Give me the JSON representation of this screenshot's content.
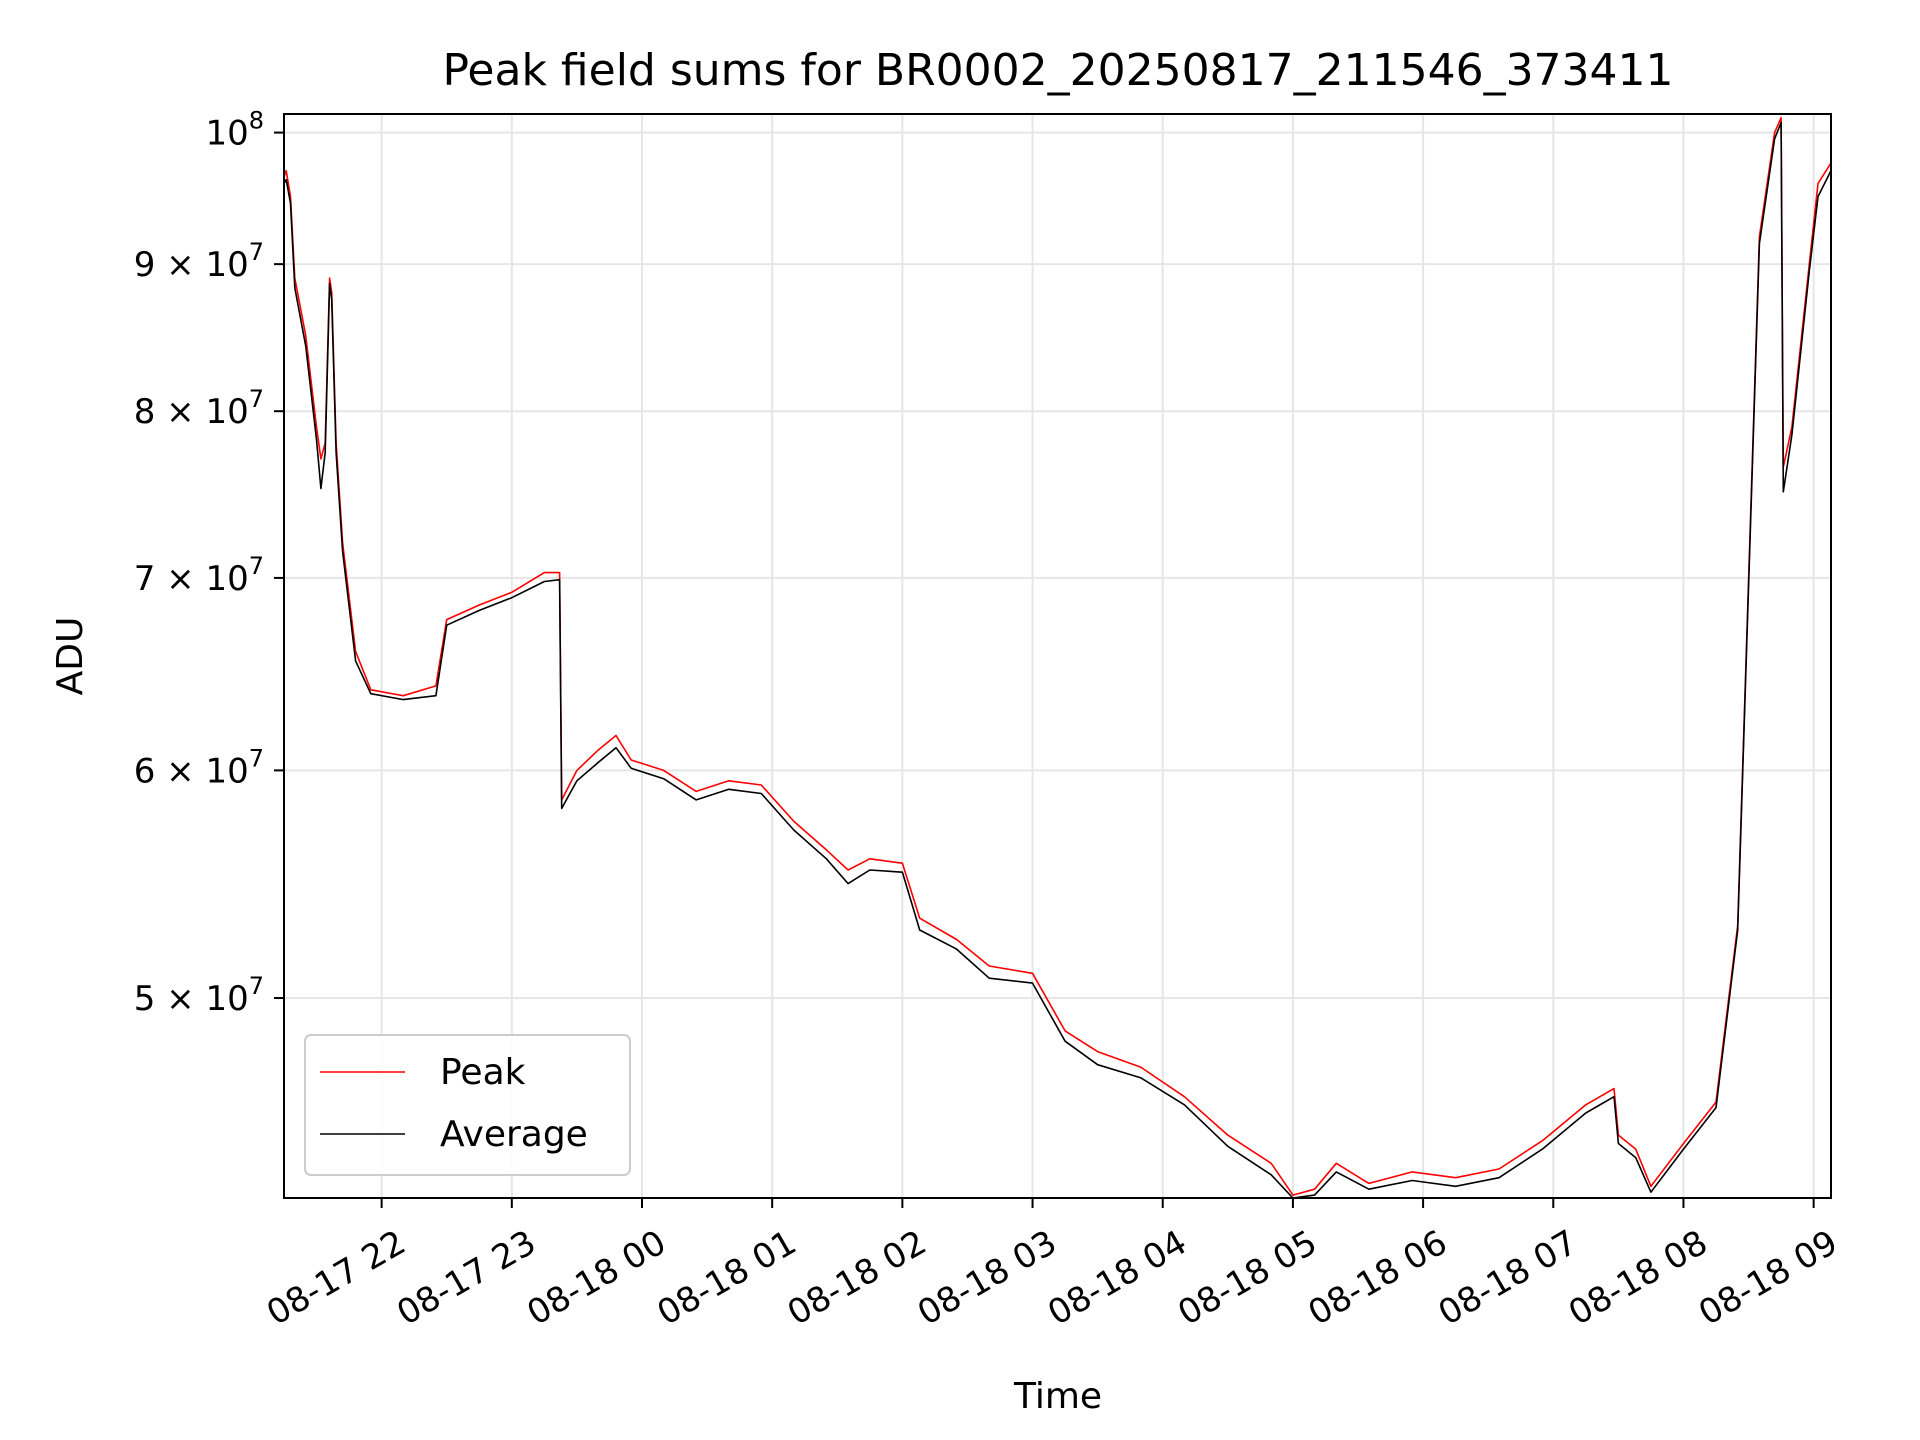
{
  "chart_data": {
    "type": "line",
    "title": "Peak field sums for BR0002_20250817_211546_373411",
    "xlabel": "Time",
    "ylabel": "ADU",
    "yscale": "log",
    "grid": true,
    "legend_position": "lower-left",
    "xlim": [
      "2025-08-17 21:15",
      "2025-08-18 09:08"
    ],
    "ylim": [
      42600000,
      101500000
    ],
    "x_ticks": [
      {
        "at": "2025-08-17 22:00",
        "label": "08-17 22"
      },
      {
        "at": "2025-08-17 23:00",
        "label": "08-17 23"
      },
      {
        "at": "2025-08-18 00:00",
        "label": "08-18 00"
      },
      {
        "at": "2025-08-18 01:00",
        "label": "08-18 01"
      },
      {
        "at": "2025-08-18 02:00",
        "label": "08-18 02"
      },
      {
        "at": "2025-08-18 03:00",
        "label": "08-18 03"
      },
      {
        "at": "2025-08-18 04:00",
        "label": "08-18 04"
      },
      {
        "at": "2025-08-18 05:00",
        "label": "08-18 05"
      },
      {
        "at": "2025-08-18 06:00",
        "label": "08-18 06"
      },
      {
        "at": "2025-08-18 07:00",
        "label": "08-18 07"
      },
      {
        "at": "2025-08-18 08:00",
        "label": "08-18 08"
      },
      {
        "at": "2025-08-18 09:00",
        "label": "08-18 09"
      }
    ],
    "y_ticks": [
      {
        "value": 50000000,
        "base": "5 × 10",
        "exp": "7"
      },
      {
        "value": 60000000,
        "base": "6 × 10",
        "exp": "7"
      },
      {
        "value": 70000000,
        "base": "7 × 10",
        "exp": "7"
      },
      {
        "value": 80000000,
        "base": "8 × 10",
        "exp": "7"
      },
      {
        "value": 90000000,
        "base": "9 × 10",
        "exp": "7"
      },
      {
        "value": 100000000,
        "base": "10",
        "exp": "8"
      }
    ],
    "series": [
      {
        "name": "Peak",
        "color": "#ff0000",
        "points": [
          [
            "2025-08-17 21:15",
            96500000
          ],
          [
            "2025-08-17 21:16",
            97000000
          ],
          [
            "2025-08-17 21:18",
            95000000
          ],
          [
            "2025-08-17 21:20",
            89000000
          ],
          [
            "2025-08-17 21:25",
            85000000
          ],
          [
            "2025-08-17 21:30",
            79000000
          ],
          [
            "2025-08-17 21:32",
            77000000
          ],
          [
            "2025-08-17 21:34",
            78000000
          ],
          [
            "2025-08-17 21:36",
            89000000
          ],
          [
            "2025-08-17 21:37",
            88000000
          ],
          [
            "2025-08-17 21:39",
            78000000
          ],
          [
            "2025-08-17 21:42",
            72000000
          ],
          [
            "2025-08-17 21:48",
            66000000
          ],
          [
            "2025-08-17 21:55",
            64000000
          ],
          [
            "2025-08-17 22:10",
            63700000
          ],
          [
            "2025-08-17 22:25",
            64200000
          ],
          [
            "2025-08-17 22:30",
            67700000
          ],
          [
            "2025-08-17 22:45",
            68500000
          ],
          [
            "2025-08-17 23:00",
            69200000
          ],
          [
            "2025-08-17 23:15",
            70300000
          ],
          [
            "2025-08-17 23:22",
            70300000
          ],
          [
            "2025-08-17 23:23",
            58600000
          ],
          [
            "2025-08-17 23:30",
            60000000
          ],
          [
            "2025-08-17 23:40",
            61000000
          ],
          [
            "2025-08-17 23:48",
            61700000
          ],
          [
            "2025-08-17 23:55",
            60500000
          ],
          [
            "2025-08-18 00:10",
            60000000
          ],
          [
            "2025-08-18 00:25",
            59000000
          ],
          [
            "2025-08-18 00:40",
            59500000
          ],
          [
            "2025-08-18 00:55",
            59300000
          ],
          [
            "2025-08-18 01:10",
            57600000
          ],
          [
            "2025-08-18 01:25",
            56300000
          ],
          [
            "2025-08-18 01:35",
            55400000
          ],
          [
            "2025-08-18 01:45",
            55900000
          ],
          [
            "2025-08-18 02:00",
            55700000
          ],
          [
            "2025-08-18 02:08",
            53300000
          ],
          [
            "2025-08-18 02:25",
            52400000
          ],
          [
            "2025-08-18 02:40",
            51300000
          ],
          [
            "2025-08-18 03:00",
            51000000
          ],
          [
            "2025-08-18 03:15",
            48700000
          ],
          [
            "2025-08-18 03:30",
            47900000
          ],
          [
            "2025-08-18 03:50",
            47300000
          ],
          [
            "2025-08-18 04:10",
            46200000
          ],
          [
            "2025-08-18 04:30",
            44800000
          ],
          [
            "2025-08-18 04:50",
            43800000
          ],
          [
            "2025-08-18 05:00",
            42700000
          ],
          [
            "2025-08-18 05:10",
            42900000
          ],
          [
            "2025-08-18 05:20",
            43800000
          ],
          [
            "2025-08-18 05:35",
            43100000
          ],
          [
            "2025-08-18 05:55",
            43500000
          ],
          [
            "2025-08-18 06:15",
            43300000
          ],
          [
            "2025-08-18 06:35",
            43600000
          ],
          [
            "2025-08-18 06:55",
            44600000
          ],
          [
            "2025-08-18 07:15",
            45900000
          ],
          [
            "2025-08-18 07:28",
            46500000
          ],
          [
            "2025-08-18 07:30",
            44800000
          ],
          [
            "2025-08-18 07:38",
            44300000
          ],
          [
            "2025-08-18 07:45",
            43000000
          ],
          [
            "2025-08-18 08:00",
            44500000
          ],
          [
            "2025-08-18 08:15",
            46000000
          ],
          [
            "2025-08-18 08:25",
            53000000
          ],
          [
            "2025-08-18 08:35",
            92000000
          ],
          [
            "2025-08-18 08:42",
            100000000
          ],
          [
            "2025-08-18 08:45",
            101200000
          ],
          [
            "2025-08-18 08:46",
            76500000
          ],
          [
            "2025-08-18 08:50",
            79000000
          ],
          [
            "2025-08-18 08:58",
            90000000
          ],
          [
            "2025-08-18 09:02",
            96000000
          ],
          [
            "2025-08-18 09:08",
            97600000
          ]
        ]
      },
      {
        "name": "Average",
        "color": "#000000",
        "points": [
          [
            "2025-08-17 21:15",
            96000000
          ],
          [
            "2025-08-17 21:16",
            96300000
          ],
          [
            "2025-08-17 21:18",
            94500000
          ],
          [
            "2025-08-17 21:20",
            88300000
          ],
          [
            "2025-08-17 21:25",
            84300000
          ],
          [
            "2025-08-17 21:30",
            78200000
          ],
          [
            "2025-08-17 21:32",
            75200000
          ],
          [
            "2025-08-17 21:34",
            77400000
          ],
          [
            "2025-08-17 21:36",
            88600000
          ],
          [
            "2025-08-17 21:37",
            87500000
          ],
          [
            "2025-08-17 21:39",
            77400000
          ],
          [
            "2025-08-17 21:42",
            71500000
          ],
          [
            "2025-08-17 21:48",
            65500000
          ],
          [
            "2025-08-17 21:55",
            63800000
          ],
          [
            "2025-08-17 22:10",
            63500000
          ],
          [
            "2025-08-17 22:25",
            63700000
          ],
          [
            "2025-08-17 22:30",
            67400000
          ],
          [
            "2025-08-17 22:45",
            68200000
          ],
          [
            "2025-08-17 23:00",
            68900000
          ],
          [
            "2025-08-17 23:15",
            69800000
          ],
          [
            "2025-08-17 23:22",
            69900000
          ],
          [
            "2025-08-17 23:23",
            58200000
          ],
          [
            "2025-08-17 23:30",
            59500000
          ],
          [
            "2025-08-17 23:40",
            60400000
          ],
          [
            "2025-08-17 23:48",
            61100000
          ],
          [
            "2025-08-17 23:55",
            60100000
          ],
          [
            "2025-08-18 00:10",
            59600000
          ],
          [
            "2025-08-18 00:25",
            58600000
          ],
          [
            "2025-08-18 00:40",
            59100000
          ],
          [
            "2025-08-18 00:55",
            58900000
          ],
          [
            "2025-08-18 01:10",
            57200000
          ],
          [
            "2025-08-18 01:25",
            55900000
          ],
          [
            "2025-08-18 01:35",
            54800000
          ],
          [
            "2025-08-18 01:45",
            55400000
          ],
          [
            "2025-08-18 02:00",
            55300000
          ],
          [
            "2025-08-18 02:08",
            52800000
          ],
          [
            "2025-08-18 02:25",
            52000000
          ],
          [
            "2025-08-18 02:40",
            50800000
          ],
          [
            "2025-08-18 03:00",
            50600000
          ],
          [
            "2025-08-18 03:15",
            48300000
          ],
          [
            "2025-08-18 03:30",
            47400000
          ],
          [
            "2025-08-18 03:50",
            46900000
          ],
          [
            "2025-08-18 04:10",
            45900000
          ],
          [
            "2025-08-18 04:30",
            44400000
          ],
          [
            "2025-08-18 04:50",
            43400000
          ],
          [
            "2025-08-18 05:00",
            42600000
          ],
          [
            "2025-08-18 05:10",
            42700000
          ],
          [
            "2025-08-18 05:20",
            43500000
          ],
          [
            "2025-08-18 05:35",
            42900000
          ],
          [
            "2025-08-18 05:55",
            43200000
          ],
          [
            "2025-08-18 06:15",
            43000000
          ],
          [
            "2025-08-18 06:35",
            43300000
          ],
          [
            "2025-08-18 06:55",
            44300000
          ],
          [
            "2025-08-18 07:15",
            45600000
          ],
          [
            "2025-08-18 07:28",
            46200000
          ],
          [
            "2025-08-18 07:30",
            44500000
          ],
          [
            "2025-08-18 07:38",
            44000000
          ],
          [
            "2025-08-18 07:45",
            42800000
          ],
          [
            "2025-08-18 08:00",
            44300000
          ],
          [
            "2025-08-18 08:15",
            45800000
          ],
          [
            "2025-08-18 08:25",
            52800000
          ],
          [
            "2025-08-18 08:35",
            91500000
          ],
          [
            "2025-08-18 08:42",
            99500000
          ],
          [
            "2025-08-18 08:45",
            100800000
          ],
          [
            "2025-08-18 08:46",
            75000000
          ],
          [
            "2025-08-18 08:50",
            78500000
          ],
          [
            "2025-08-18 08:58",
            89500000
          ],
          [
            "2025-08-18 09:02",
            95000000
          ],
          [
            "2025-08-18 09:08",
            97000000
          ]
        ]
      }
    ]
  }
}
